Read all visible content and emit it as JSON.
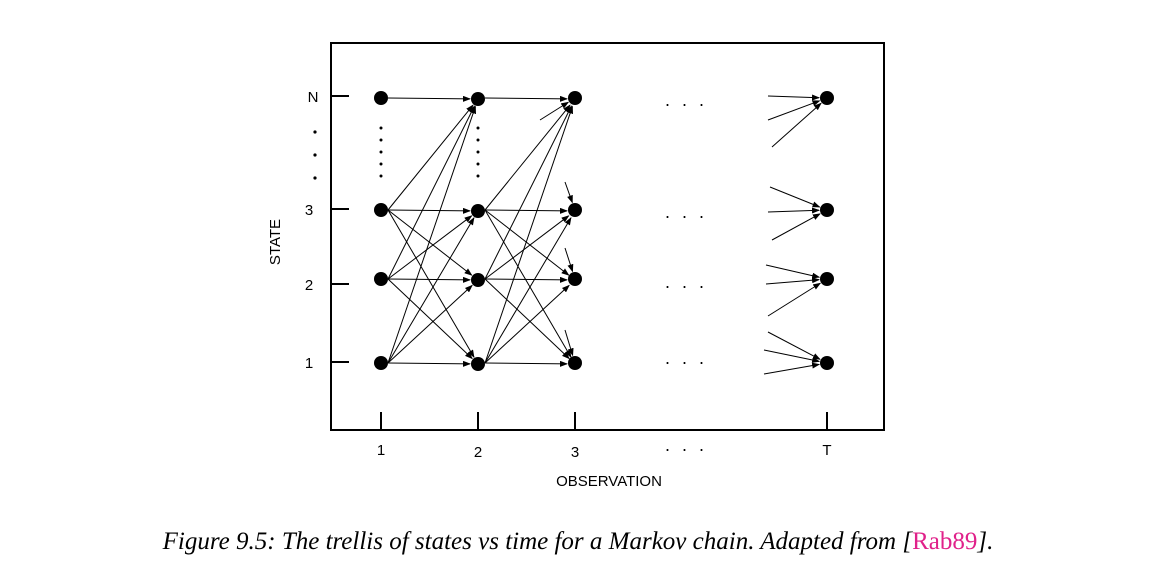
{
  "diagram": {
    "state_axis_label": "STATE",
    "observation_axis_label": "OBSERVATION",
    "state_ticks": [
      "N",
      "3",
      "2",
      "1"
    ],
    "observation_ticks": [
      "1",
      "2",
      "3",
      "T"
    ],
    "ellipsis": "· · ·"
  },
  "caption": {
    "prefix": "Figure 9.5: The trellis of states vs time for a Markov chain. Adapted from [",
    "citation": "Rab89",
    "suffix": "]."
  }
}
